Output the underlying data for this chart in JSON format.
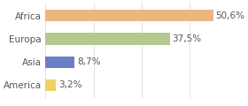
{
  "categories": [
    "Africa",
    "Europa",
    "Asia",
    "America"
  ],
  "values": [
    50.6,
    37.5,
    8.7,
    3.2
  ],
  "labels": [
    "50,6%",
    "37,5%",
    "8,7%",
    "3,2%"
  ],
  "colors": [
    "#e8b882",
    "#b5c98e",
    "#6b7fc4",
    "#f0d060"
  ],
  "xlim": [
    0,
    58
  ],
  "background_color": "#ffffff",
  "bar_height": 0.5,
  "label_fontsize": 7.5,
  "tick_fontsize": 7.5
}
